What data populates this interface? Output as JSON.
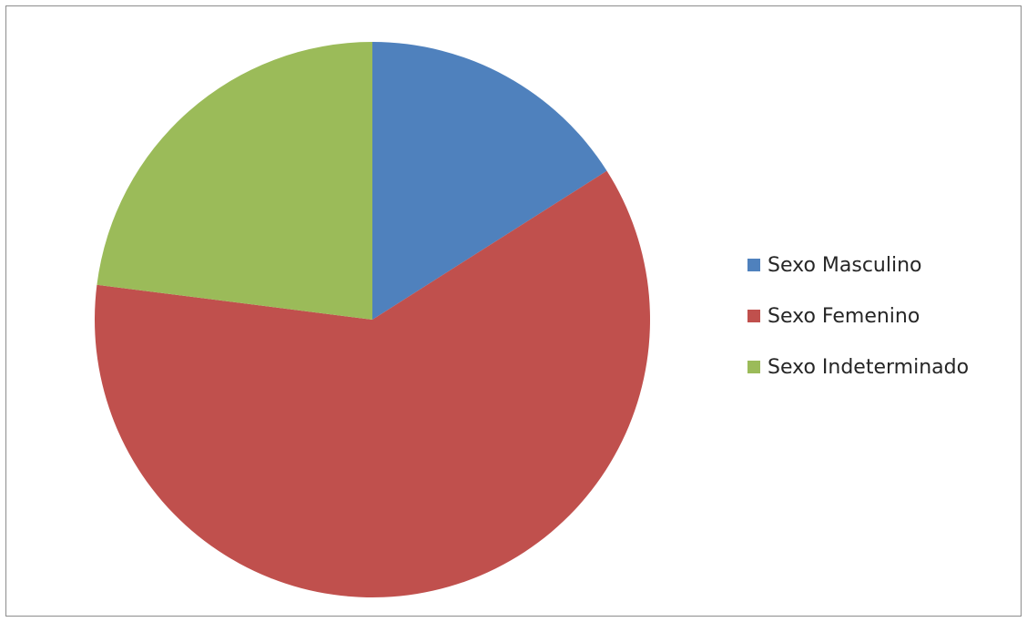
{
  "chart_data": {
    "type": "pie",
    "title": "",
    "start_angle_deg": 0,
    "direction": "clockwise",
    "legend_position": "right",
    "slices": [
      {
        "name": "Sexo Masculino",
        "value": 16,
        "color": "#4F81BD"
      },
      {
        "name": "Sexo Femenino",
        "value": 61,
        "color": "#C0504D"
      },
      {
        "name": "Sexo Indeterminado",
        "value": 23,
        "color": "#9BBB59"
      }
    ]
  }
}
